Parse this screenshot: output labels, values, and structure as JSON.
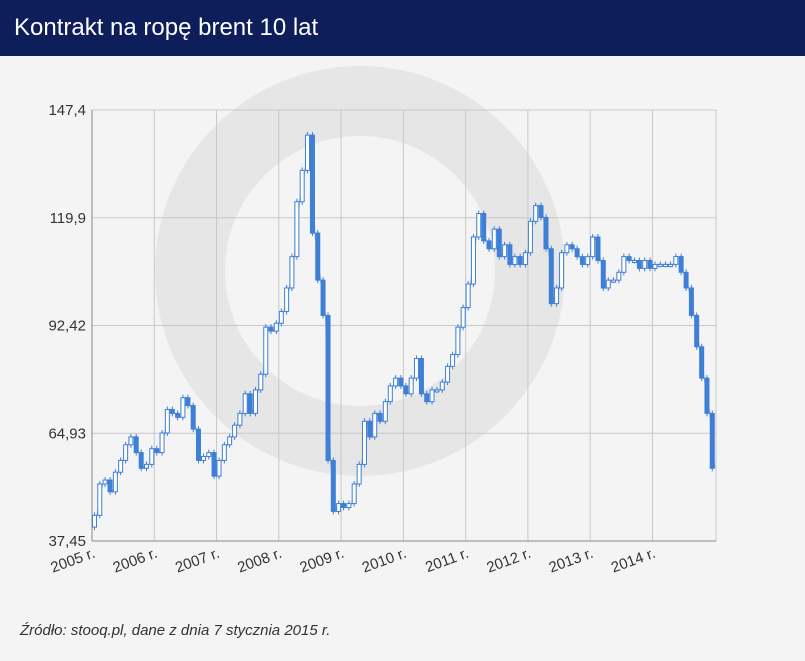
{
  "title": "Kontrakt na ropę brent 10 lat",
  "source": "Źródło: stooq.pl, dane z dnia 7 stycznia 2015 r.",
  "colors": {
    "header_bg": "#0e1e5a",
    "series": "#3f7fd6",
    "grid": "#c8c8c8",
    "background": "#f4f4f4"
  },
  "chart_data": {
    "type": "line",
    "style": "candlestick",
    "title": "Kontrakt na ropę brent 10 lat",
    "xlabel": "",
    "ylabel": "",
    "y_ticks": [
      {
        "value": 147.4,
        "label": "147,4"
      },
      {
        "value": 119.9,
        "label": "119,9"
      },
      {
        "value": 92.42,
        "label": "92,42"
      },
      {
        "value": 64.93,
        "label": "64,93"
      },
      {
        "value": 37.45,
        "label": "37,45"
      }
    ],
    "ylim": [
      37.45,
      147.4
    ],
    "xlim": [
      2005.0,
      2015.02
    ],
    "x_ticks": [
      {
        "value": 2005,
        "label": "2005 r."
      },
      {
        "value": 2006,
        "label": "2006 r."
      },
      {
        "value": 2007,
        "label": "2007 r."
      },
      {
        "value": 2008,
        "label": "2008 r."
      },
      {
        "value": 2009,
        "label": "2009 r."
      },
      {
        "value": 2010,
        "label": "2010 r."
      },
      {
        "value": 2011,
        "label": "2011 r."
      },
      {
        "value": 2012,
        "label": "2012 r."
      },
      {
        "value": 2013,
        "label": "2013 r."
      },
      {
        "value": 2014,
        "label": "2014 r."
      }
    ],
    "grid": true,
    "series": [
      {
        "x": [
          2005.0,
          2005.08,
          2005.17,
          2005.25,
          2005.33,
          2005.42,
          2005.5,
          2005.58,
          2005.67,
          2005.75,
          2005.83,
          2005.92,
          2006.0,
          2006.08,
          2006.17,
          2006.25,
          2006.33,
          2006.42,
          2006.5,
          2006.58,
          2006.67,
          2006.75,
          2006.83,
          2006.92,
          2007.0,
          2007.08,
          2007.17,
          2007.25,
          2007.33,
          2007.42,
          2007.5,
          2007.58,
          2007.67,
          2007.75,
          2007.83,
          2007.92,
          2008.0,
          2008.08,
          2008.17,
          2008.25,
          2008.33,
          2008.42,
          2008.5,
          2008.58,
          2008.67,
          2008.75,
          2008.83,
          2008.92,
          2009.0,
          2009.08,
          2009.17,
          2009.25,
          2009.33,
          2009.42,
          2009.5,
          2009.58,
          2009.67,
          2009.75,
          2009.83,
          2009.92,
          2010.0,
          2010.08,
          2010.17,
          2010.25,
          2010.33,
          2010.42,
          2010.5,
          2010.58,
          2010.67,
          2010.75,
          2010.83,
          2010.92,
          2011.0,
          2011.08,
          2011.17,
          2011.25,
          2011.33,
          2011.42,
          2011.5,
          2011.58,
          2011.67,
          2011.75,
          2011.83,
          2011.92,
          2012.0,
          2012.08,
          2012.17,
          2012.25,
          2012.33,
          2012.42,
          2012.5,
          2012.58,
          2012.67,
          2012.75,
          2012.83,
          2012.92,
          2013.0,
          2013.08,
          2013.17,
          2013.25,
          2013.33,
          2013.42,
          2013.5,
          2013.58,
          2013.67,
          2013.75,
          2013.83,
          2013.92,
          2014.0,
          2014.08,
          2014.17,
          2014.25,
          2014.33,
          2014.42,
          2014.5,
          2014.58,
          2014.67,
          2014.75,
          2014.83,
          2014.92,
          2015.0
        ],
        "y": [
          41,
          44,
          52,
          53,
          50,
          55,
          58,
          62,
          64,
          60,
          56,
          57,
          61,
          60,
          65,
          71,
          70,
          69,
          74,
          72,
          66,
          58,
          59,
          60,
          54,
          58,
          62,
          64,
          67,
          70,
          75,
          70,
          76,
          80,
          92,
          91,
          93,
          96,
          102,
          110,
          124,
          132,
          141,
          116,
          104,
          95,
          58,
          45,
          47,
          46,
          47,
          52,
          57,
          68,
          64,
          70,
          68,
          73,
          77,
          79,
          77,
          75,
          79,
          84,
          75,
          73,
          76,
          76,
          78,
          82,
          85,
          92,
          97,
          103,
          115,
          121,
          114,
          112,
          117,
          110,
          113,
          108,
          110,
          108,
          111,
          119,
          123,
          120,
          112,
          98,
          102,
          111,
          113,
          112,
          110,
          108,
          110,
          115,
          109,
          102,
          104,
          104,
          106,
          110,
          109,
          109,
          107,
          109,
          107,
          108,
          108,
          108,
          108,
          110,
          106,
          102,
          95,
          87,
          79,
          70,
          56
        ]
      }
    ]
  }
}
